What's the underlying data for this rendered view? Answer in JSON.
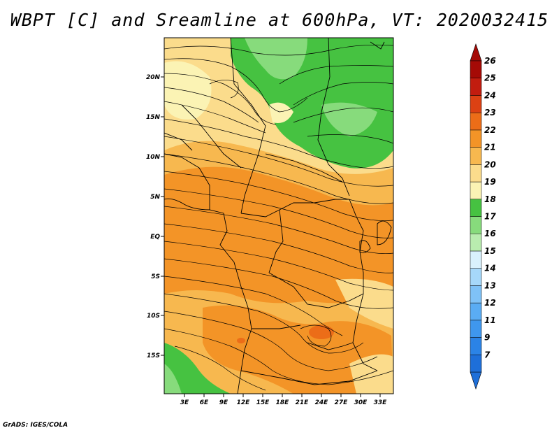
{
  "title": "WBPT [C] and Sreamline at 600hPa, VT: 2020032415",
  "footer": "GrADS: IGES/COLA",
  "lat_labels": [
    "20N",
    "15N",
    "10N",
    "5N",
    "EQ",
    "5S",
    "10S",
    "15S"
  ],
  "lon_labels": [
    "3E",
    "6E",
    "9E",
    "12E",
    "15E",
    "18E",
    "21E",
    "24E",
    "27E",
    "30E",
    "33E"
  ],
  "colorbar": {
    "labels": [
      "7",
      "9",
      "11",
      "12",
      "13",
      "14",
      "15",
      "16",
      "17",
      "18",
      "19",
      "20",
      "21",
      "22",
      "23",
      "24",
      "25",
      "26"
    ],
    "colors": [
      "#1e6fd9",
      "#2b83e6",
      "#3f97ee",
      "#5aacf3",
      "#7fc2f7",
      "#a6d8fa",
      "#d9f1fd",
      "#b9ecaf",
      "#87db7c",
      "#46c241",
      "#fbf3b4",
      "#fbdc8c",
      "#f7b84f",
      "#f39427",
      "#ec6d18",
      "#dc4113",
      "#c21c0f",
      "#a50a06"
    ]
  },
  "field_colors": {
    "green_dark": "#46c241",
    "green_light": "#87db7c",
    "yellow_pale": "#fbf3b4",
    "yellow": "#fbdc8c",
    "orange_light": "#f7b84f",
    "orange": "#f39427",
    "red": "#ec6d18"
  }
}
